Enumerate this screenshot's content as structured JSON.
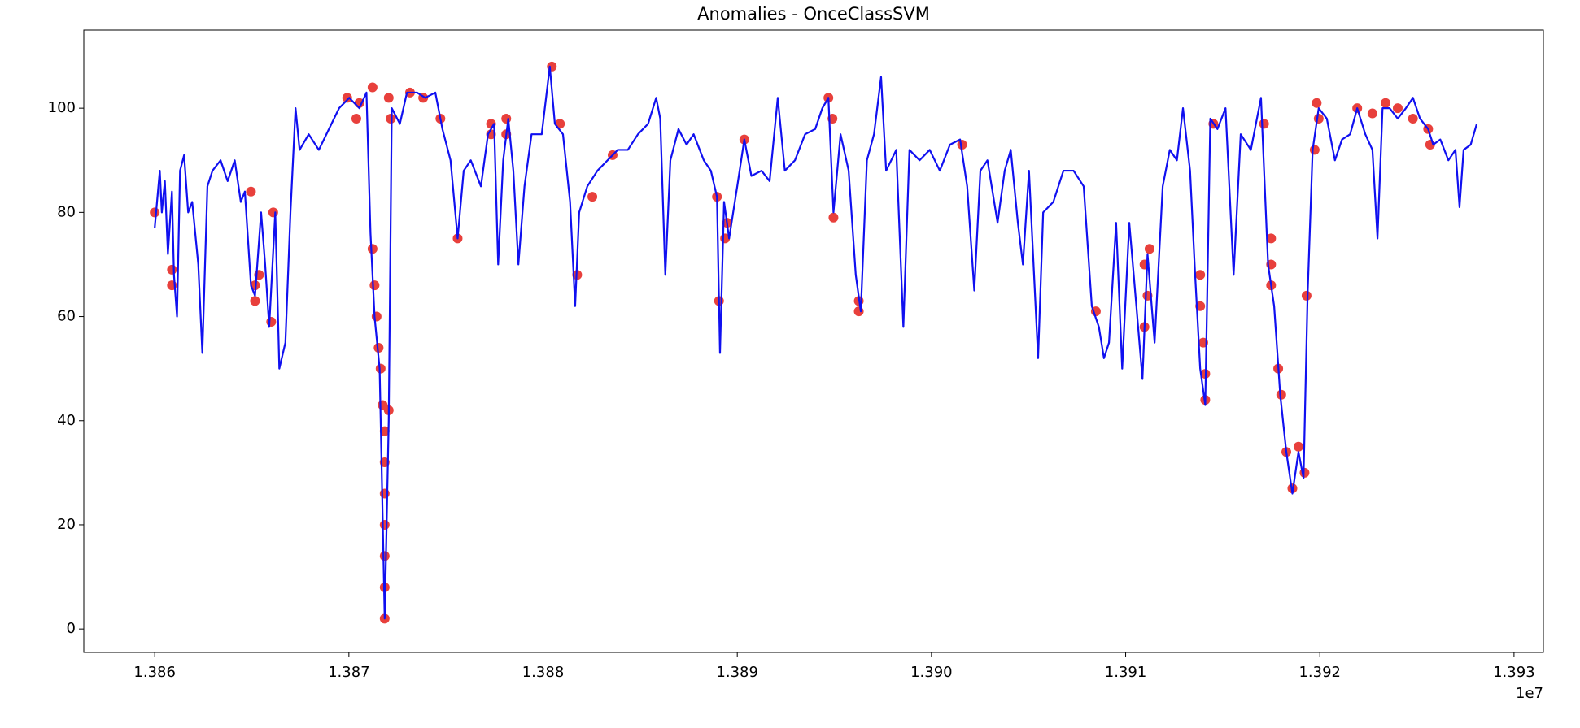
{
  "chart_data": {
    "type": "line",
    "title": "Anomalies - OnceClassSVM",
    "x_offset_label": "1e7",
    "xlim": [
      13856348,
      13931513
    ],
    "ylim": [
      -4.5,
      115
    ],
    "xticks": [
      {
        "value": 13860000,
        "label": "1.386"
      },
      {
        "value": 13870000,
        "label": "1.387"
      },
      {
        "value": 13880000,
        "label": "1.388"
      },
      {
        "value": 13890000,
        "label": "1.389"
      },
      {
        "value": 13900000,
        "label": "1.390"
      },
      {
        "value": 13910000,
        "label": "1.391"
      },
      {
        "value": 13920000,
        "label": "1.392"
      },
      {
        "value": 13930000,
        "label": "1.393"
      }
    ],
    "yticks": [
      0,
      20,
      40,
      60,
      80,
      100
    ],
    "grid": false,
    "series": [
      {
        "type": "scatter",
        "color": "#e8403c",
        "x": [
          13860000,
          13860887,
          13860887,
          13864956,
          13865165,
          13865165,
          13865374,
          13865999,
          13866104,
          13869912,
          13870382,
          13870538,
          13871217,
          13871217,
          13871321,
          13871425,
          13871530,
          13871634,
          13871738,
          13871843,
          13871843,
          13871843,
          13871843,
          13871843,
          13871843,
          13871843,
          13872051,
          13872051,
          13872156,
          13873147,
          13873825,
          13874712,
          13875599,
          13877320,
          13877320,
          13878103,
          13878103,
          13880451,
          13880868,
          13881755,
          13882537,
          13883581,
          13888954,
          13889059,
          13889372,
          13889476,
          13890363,
          13894693,
          13894902,
          13894954,
          13896258,
          13896258,
          13901579,
          13908466,
          13910970,
          13910970,
          13911127,
          13911231,
          13913839,
          13913839,
          13913996,
          13914100,
          13914100,
          13914517,
          13917126,
          13917491,
          13917491,
          13917491,
          13917857,
          13918013,
          13918274,
          13918587,
          13918900,
          13919213,
          13919317,
          13919735,
          13919839,
          13919943,
          13921926,
          13922709,
          13923387,
          13924013,
          13924795,
          13925578,
          13925682
        ],
        "values": [
          80,
          69,
          66,
          84,
          66,
          63,
          68,
          59,
          80,
          102,
          98,
          101,
          104,
          73,
          66,
          60,
          54,
          50,
          43,
          38,
          32,
          26,
          20,
          14,
          8,
          2,
          42,
          102,
          98,
          103,
          102,
          98,
          75,
          97,
          95,
          98,
          95,
          108,
          97,
          68,
          83,
          91,
          83,
          63,
          75,
          78,
          94,
          102,
          98,
          79,
          63,
          61,
          93,
          61,
          70,
          58,
          64,
          73,
          68,
          62,
          55,
          49,
          44,
          97,
          97,
          75,
          70,
          66,
          50,
          45,
          34,
          27,
          35,
          30,
          64,
          92,
          101,
          98,
          100,
          99,
          101,
          100,
          98,
          96,
          93
        ]
      },
      {
        "type": "line",
        "color": "#1010f0",
        "x": [
          13860000,
          13860261,
          13860365,
          13860522,
          13860678,
          13860887,
          13860991,
          13861148,
          13861304,
          13861513,
          13861722,
          13861930,
          13862243,
          13862452,
          13862713,
          13862974,
          13863391,
          13863756,
          13864121,
          13864434,
          13864643,
          13864956,
          13865165,
          13865478,
          13865687,
          13865895,
          13866208,
          13866417,
          13866730,
          13866991,
          13867252,
          13867460,
          13867930,
          13868452,
          13868973,
          13869495,
          13870017,
          13870538,
          13870904,
          13871112,
          13871321,
          13871582,
          13871843,
          13872051,
          13872208,
          13872625,
          13872990,
          13873512,
          13873929,
          13874451,
          13874816,
          13875234,
          13875599,
          13875912,
          13876277,
          13876799,
          13877164,
          13877477,
          13877686,
          13877946,
          13878207,
          13878468,
          13878729,
          13879042,
          13879407,
          13879929,
          13880346,
          13880607,
          13881025,
          13881390,
          13881651,
          13881859,
          13882277,
          13882798,
          13883320,
          13883842,
          13884363,
          13884885,
          13885407,
          13885824,
          13886033,
          13886294,
          13886555,
          13886972,
          13887389,
          13887754,
          13888276,
          13888641,
          13888954,
          13889111,
          13889320,
          13889580,
          13889998,
          13890363,
          13890728,
          13891250,
          13891667,
          13892085,
          13892450,
          13892971,
          13893493,
          13894015,
          13894380,
          13894693,
          13894954,
          13895319,
          13895736,
          13896102,
          13896362,
          13896676,
          13897041,
          13897406,
          13897667,
          13898188,
          13898554,
          13898867,
          13899388,
          13899910,
          13900432,
          13900953,
          13901475,
          13901840,
          13902206,
          13902519,
          13902884,
          13903405,
          13903771,
          13904084,
          13904449,
          13904710,
          13905023,
          13905492,
          13905753,
          13906275,
          13906796,
          13907318,
          13907840,
          13908257,
          13908622,
          13908883,
          13909144,
          13909509,
          13909822,
          13910188,
          13910553,
          13910866,
          13911127,
          13911492,
          13911909,
          13912274,
          13912640,
          13912953,
          13913318,
          13913579,
          13913839,
          13914100,
          13914361,
          13914726,
          13915144,
          13915561,
          13915926,
          13916448,
          13916970,
          13917335,
          13917648,
          13917961,
          13918274,
          13918587,
          13918900,
          13919161,
          13919369,
          13919630,
          13919943,
          13920361,
          13920778,
          13921143,
          13921561,
          13921926,
          13922343,
          13922709,
          13922970,
          13923230,
          13923596,
          13924013,
          13924430,
          13924795,
          13925160,
          13925578,
          13925839,
          13926204,
          13926621,
          13926986,
          13927195,
          13927404,
          13927769,
          13928082
        ],
        "values": [
          77,
          88,
          80,
          86,
          72,
          84,
          68,
          60,
          88,
          91,
          80,
          82,
          70,
          53,
          85,
          88,
          90,
          86,
          90,
          82,
          84,
          66,
          64,
          80,
          70,
          58,
          80,
          50,
          55,
          80,
          100,
          92,
          95,
          92,
          96,
          100,
          102,
          100,
          103,
          76,
          60,
          50,
          2,
          40,
          100,
          97,
          103,
          103,
          102,
          103,
          96,
          90,
          75,
          88,
          90,
          85,
          95,
          97,
          70,
          90,
          98,
          88,
          70,
          85,
          95,
          95,
          108,
          97,
          95,
          82,
          62,
          80,
          85,
          88,
          90,
          92,
          92,
          95,
          97,
          102,
          98,
          68,
          90,
          96,
          93,
          95,
          90,
          88,
          83,
          53,
          82,
          75,
          85,
          94,
          87,
          88,
          86,
          102,
          88,
          90,
          95,
          96,
          100,
          102,
          80,
          95,
          88,
          68,
          61,
          90,
          95,
          106,
          88,
          92,
          58,
          92,
          90,
          92,
          88,
          93,
          94,
          85,
          65,
          88,
          90,
          78,
          88,
          92,
          78,
          70,
          88,
          52,
          80,
          82,
          88,
          88,
          85,
          62,
          58,
          52,
          55,
          78,
          50,
          78,
          62,
          48,
          72,
          55,
          85,
          92,
          90,
          100,
          88,
          68,
          50,
          43,
          98,
          96,
          100,
          68,
          95,
          92,
          102,
          70,
          62,
          45,
          34,
          26,
          34,
          29,
          64,
          92,
          100,
          98,
          90,
          94,
          95,
          100,
          95,
          92,
          75,
          100,
          100,
          98,
          100,
          102,
          98,
          96,
          93,
          94,
          90,
          92,
          81,
          92,
          93,
          97
        ]
      }
    ]
  }
}
